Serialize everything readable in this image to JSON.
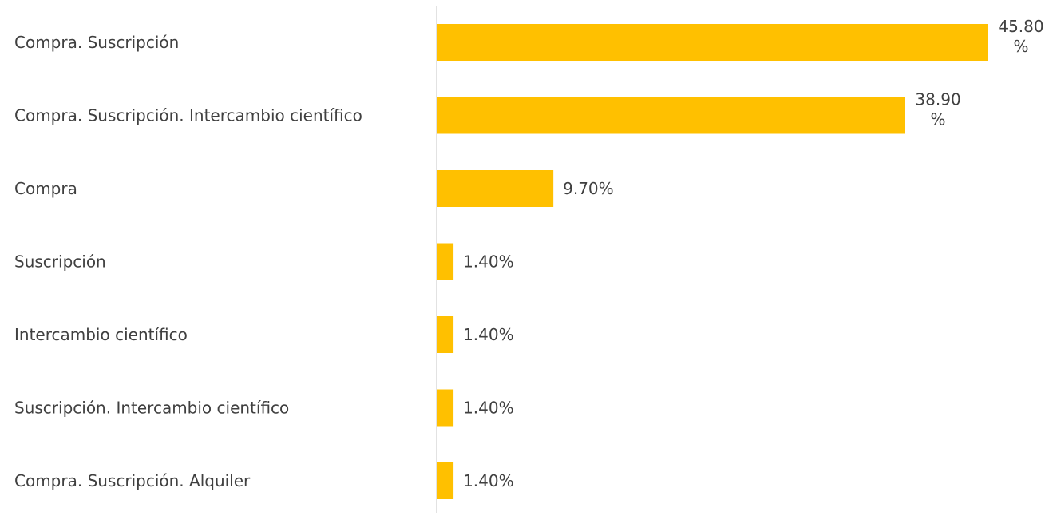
{
  "chart_data": {
    "type": "bar",
    "orientation": "horizontal",
    "categories": [
      "Compra. Suscripción",
      "Compra. Suscripción. Intercambio científico",
      "Compra",
      "Suscripción",
      "Intercambio científico",
      "Suscripción. Intercambio científico",
      "Compra. Suscripción. Alquiler"
    ],
    "values": [
      45.8,
      38.9,
      9.7,
      1.4,
      1.4,
      1.4,
      1.4
    ],
    "data_labels": [
      [
        "45.80",
        "%"
      ],
      [
        "38.90",
        "%"
      ],
      [
        "9.70%"
      ],
      [
        "1.40%"
      ],
      [
        "1.40%"
      ],
      [
        "1.40%"
      ],
      [
        "1.40%"
      ]
    ],
    "title": "",
    "xlabel": "",
    "ylabel": "",
    "xlim": [
      0,
      45.8
    ],
    "grid": false,
    "legend": "none",
    "colors": {
      "bar": "#FFC000",
      "axis_line": "#D9D9D9",
      "label_text": "#404040"
    }
  }
}
